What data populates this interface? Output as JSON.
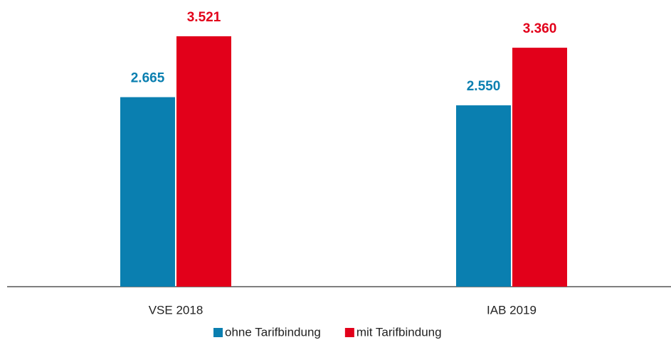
{
  "chart_data": {
    "type": "bar",
    "categories": [
      "VSE 2018",
      "IAB 2019"
    ],
    "series": [
      {
        "name": "ohne Tarifbindung",
        "color": "#0a7fb0",
        "values": [
          2665,
          2550
        ],
        "value_labels": [
          "2.665",
          "2.550"
        ]
      },
      {
        "name": "mit Tarifbindung",
        "color": "#e2001a",
        "values": [
          3521,
          3360
        ],
        "value_labels": [
          "3.521",
          "3.360"
        ]
      }
    ],
    "legend": "bottom"
  }
}
